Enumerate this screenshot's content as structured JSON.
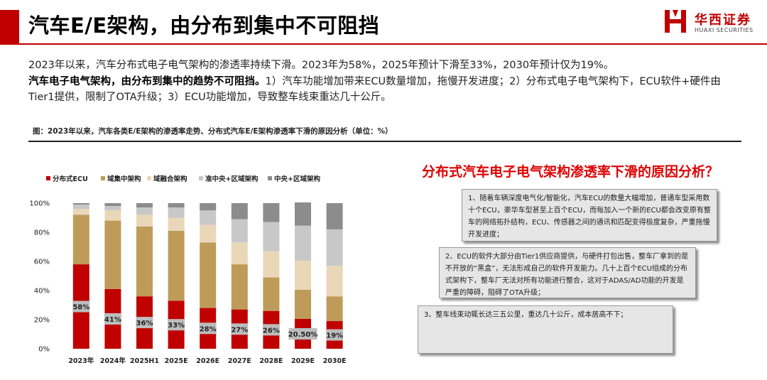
{
  "header": {
    "title": "汽车E/E架构，由分布到集中不可阻挡",
    "logo_cn": "华西证券",
    "logo_en": "HUAXI SECURITIES",
    "accent_color": "#c00000"
  },
  "body": {
    "para1": "2023年以来，汽车分布式电子电气架构的渗透率持续下滑。2023年为58%，2025年预计下滑至33%，2030年预计仅为19%。",
    "para2_bold": "汽车电子电气架构，由分布到集中的趋势不可阻挡。",
    "para2_rest": "1）汽车功能增加带来ECU数量增加，拖慢开发进度；2）分布式电子电气架构下，ECU软件+硬件由Tier1提供，限制了OTA升级；3）ECU功能增加，导致整车线束重达几十公斤。"
  },
  "figure": {
    "caption": "图：2023年以来，汽车各类E/E架构的渗透率走势、分布式汽车E/E架构渗透率下滑的原因分析（单位：%）"
  },
  "chart_data": {
    "type": "bar",
    "stacked": true,
    "percent": true,
    "categories": [
      "2023年",
      "2024年",
      "2025H1",
      "2025E",
      "2026E",
      "2027E",
      "2028E",
      "2029E",
      "2030E"
    ],
    "series": [
      {
        "name": "分布式ECU",
        "color": "#c00000",
        "values": [
          58,
          41,
          36,
          33,
          28,
          27,
          26,
          20.5,
          19
        ]
      },
      {
        "name": "域集中架构",
        "color": "#bf9b5a",
        "values": [
          34,
          47,
          48,
          48,
          45,
          31,
          23,
          20,
          17
        ]
      },
      {
        "name": "域融合架构",
        "color": "#ead7b7",
        "values": [
          4,
          7,
          8,
          9,
          12,
          15,
          18,
          20,
          21
        ]
      },
      {
        "name": "准中央+区域架构",
        "color": "#c8c8c8",
        "values": [
          3,
          3,
          5,
          7,
          10,
          16,
          20,
          24,
          25
        ]
      },
      {
        "name": "中央+区域架构",
        "color": "#8c8c8c",
        "values": [
          1,
          2,
          3,
          3,
          5,
          11,
          13,
          16,
          18
        ]
      }
    ],
    "data_labels": [
      "58%",
      "41%",
      "36%",
      "33%",
      "28%",
      "27%",
      "26%",
      "20.50%",
      "19%"
    ],
    "y_ticks": [
      "0%",
      "20%",
      "40%",
      "60%",
      "80%",
      "100%"
    ],
    "ylim": [
      0,
      100
    ],
    "grid": false,
    "legend_position": "top"
  },
  "reasons": {
    "title": "分布式汽车电子电气架构渗透率下滑的原因分析？",
    "items": [
      "1、随着车辆深度电气化/智能化，汽车ECU的数量大幅增加，普通车型采用数十个ECU，豪华车型甚至上百个ECU，而每加入一个新的ECU都会改变原有整车的网络拓扑结构，ECU、传感器之间的通讯和匹配变得极度复杂，严重拖慢开发进度；",
      "2、ECU的软件大部分由Tier1供应商提供，与硬件打包出售，整车厂拿到的是不开放的“黑盒”，无法形成自己的软件开发能力。几十上百个ECU组成的分布式架构下，整车厂无法对所有功能进行整合，这对于ADAS/AD功能的开发是严重的障碍，阻碍了OTA升级；",
      "3、整车线束动辄长达三五公里，重达几十公斤，成本居高不下；"
    ]
  }
}
